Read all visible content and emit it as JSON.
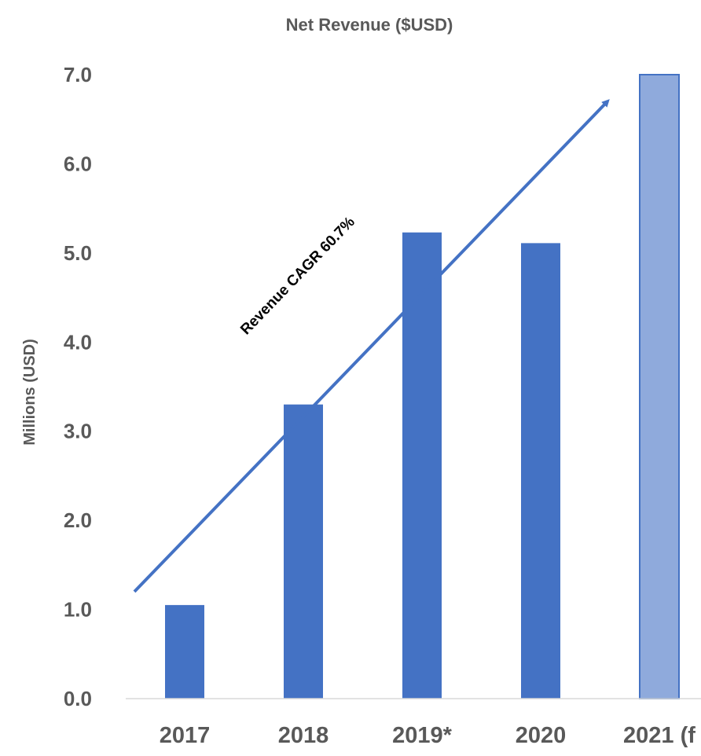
{
  "chart_data": {
    "type": "bar",
    "title": "Net Revenue ($USD)",
    "ylabel": "Millions (USD)",
    "xlabel": "",
    "categories": [
      "2017",
      "2018",
      "2019*",
      "2020",
      "2021 (f"
    ],
    "values": [
      1.05,
      3.3,
      5.23,
      5.11,
      7.0
    ],
    "ylim": [
      0,
      7.0
    ],
    "yticks": [
      "0.0",
      "1.0",
      "2.0",
      "3.0",
      "4.0",
      "5.0",
      "6.0",
      "7.0"
    ],
    "grid": false,
    "colors": {
      "bar": "#4472C4",
      "forecast_bar": "#8FAADC",
      "forecast_border": "#4472C4",
      "arrow": "#4472C4",
      "axis": "#D9D9D9",
      "text": "#595959"
    },
    "forecast_index": 4,
    "annotations": [
      {
        "text": "Revenue CAGR 60.7%",
        "arrow_from": {
          "category": "2017",
          "value": 1.2
        },
        "arrow_to": {
          "category": "2021 (f",
          "value": 6.7
        }
      }
    ]
  }
}
